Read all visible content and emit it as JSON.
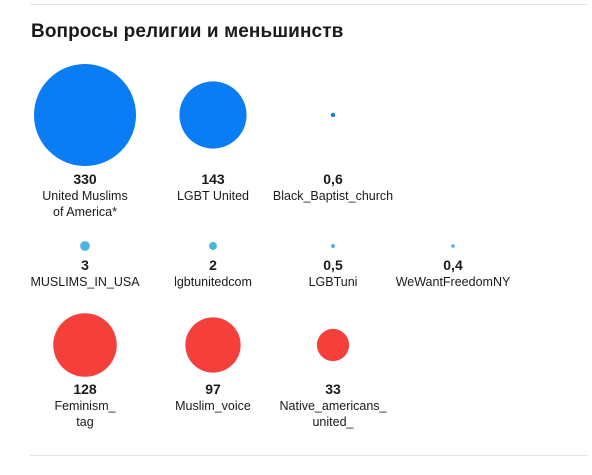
{
  "page": {
    "title": "Вопросы религии и меньшинств"
  },
  "chart_data": {
    "type": "bubble",
    "title": "Вопросы религии и меньшинств",
    "groups": [
      {
        "color": "#0a7cf4",
        "items": [
          {
            "label": "United Muslims\nof America*",
            "value": 330,
            "value_label": "330"
          },
          {
            "label": "LGBT United",
            "value": 143,
            "value_label": "143"
          },
          {
            "label": "Black_Baptist_church",
            "value": 0.6,
            "value_label": "0,6"
          }
        ]
      },
      {
        "color": "#4ab3e2",
        "items": [
          {
            "label": "MUSLIMS_IN_USA",
            "value": 3,
            "value_label": "3"
          },
          {
            "label": "lgbtunitedcom",
            "value": 2,
            "value_label": "2"
          },
          {
            "label": "LGBTuni",
            "value": 0.5,
            "value_label": "0,5"
          },
          {
            "label": "WeWantFreedomNY",
            "value": 0.4,
            "value_label": "0,4"
          }
        ]
      },
      {
        "color": "#f43f3a",
        "items": [
          {
            "label": "Feminism_\ntag",
            "value": 128,
            "value_label": "128"
          },
          {
            "label": "Muslim_voice",
            "value": 97,
            "value_label": "97"
          },
          {
            "label": "Native_americans_\nunited_",
            "value": 33,
            "value_label": "33"
          }
        ]
      }
    ]
  }
}
